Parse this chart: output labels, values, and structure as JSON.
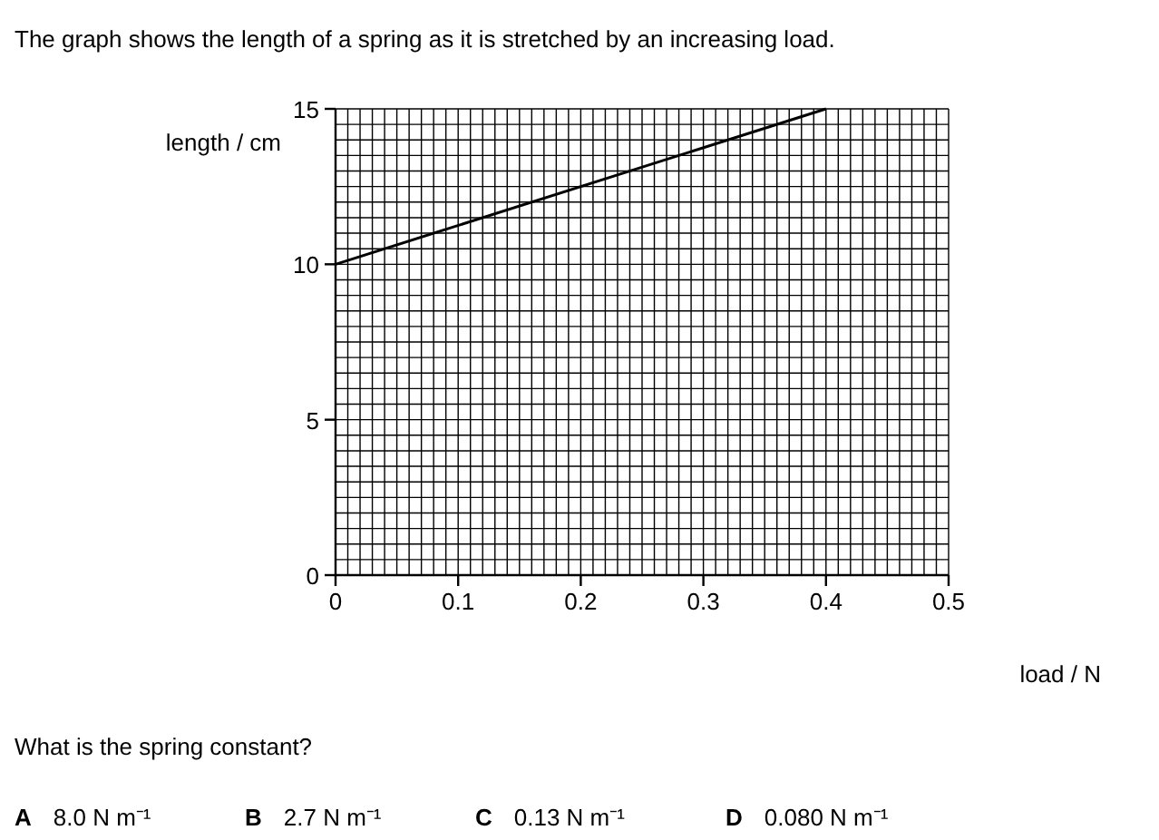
{
  "chart_data": {
    "type": "line",
    "title": "The graph shows the length of a spring as it is stretched by an increasing load.",
    "xlabel": "load / N",
    "ylabel": "length / cm",
    "x": [
      0,
      0.4
    ],
    "series": [
      {
        "color": "#000000",
        "values": [
          10,
          15
        ]
      }
    ],
    "xlim": [
      0,
      0.5
    ],
    "xticks": [
      0,
      0.1,
      0.2,
      0.3,
      0.4,
      0.5
    ],
    "ylim": [
      0,
      15
    ],
    "yticks": [
      0,
      5,
      10,
      15
    ],
    "grid": true,
    "marker": "none",
    "line_style": "solid",
    "annotations": [
      "What is the spring constant?",
      "A   8.0 N m⁻¹",
      "B   2.7 N m⁻¹",
      "C   0.13 N m⁻¹",
      "D   0.080 N m⁻¹"
    ]
  }
}
